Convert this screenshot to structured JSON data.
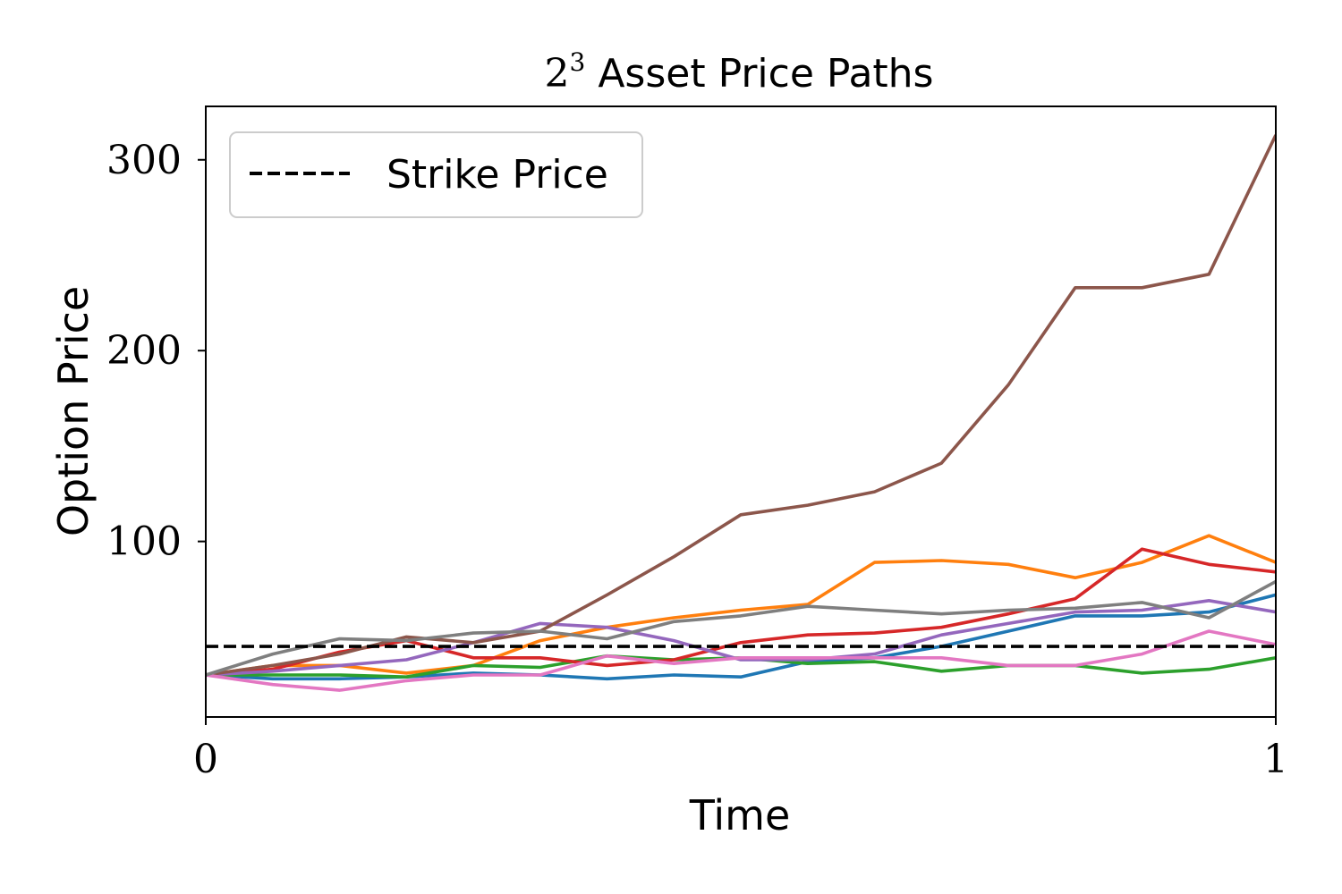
{
  "chart_data": {
    "type": "line",
    "title_base": "2",
    "title_exponent": "3",
    "title_rest": " Asset Price Paths",
    "xlabel": "Time",
    "ylabel": "Option Price",
    "xlim": [
      0,
      1
    ],
    "ylim": [
      8,
      328
    ],
    "xticks": [
      {
        "value": 0,
        "label": "0"
      },
      {
        "value": 1,
        "label": "1"
      }
    ],
    "yticks": [
      {
        "value": 100,
        "label": "100"
      },
      {
        "value": 200,
        "label": "200"
      },
      {
        "value": 300,
        "label": "300"
      }
    ],
    "grid": false,
    "legend_position": "top-left",
    "strike": {
      "name": "Strike Price",
      "value": 45,
      "color": "#000000"
    },
    "x": [
      0,
      0.0625,
      0.125,
      0.1875,
      0.25,
      0.3125,
      0.375,
      0.4375,
      0.5,
      0.5625,
      0.625,
      0.6875,
      0.75,
      0.8125,
      0.875,
      0.9375,
      1
    ],
    "series": [
      {
        "color": "#1f77b4",
        "values": [
          30,
          28,
          28,
          29,
          31,
          30,
          28,
          30,
          29,
          37,
          39,
          45,
          53,
          61,
          61,
          63,
          72
        ]
      },
      {
        "color": "#ff7f0e",
        "values": [
          30,
          35,
          35,
          31,
          35,
          48,
          55,
          60,
          64,
          67,
          89,
          90,
          88,
          81,
          89,
          103,
          89
        ]
      },
      {
        "color": "#2ca02c",
        "values": [
          30,
          30,
          30,
          29,
          35,
          34,
          40,
          38,
          39,
          36,
          37,
          32,
          35,
          35,
          31,
          33,
          39
        ]
      },
      {
        "color": "#d62728",
        "values": [
          30,
          33,
          42,
          48,
          39,
          39,
          35,
          38,
          47,
          51,
          52,
          55,
          62,
          70,
          96,
          88,
          84
        ]
      },
      {
        "color": "#9467bd",
        "values": [
          30,
          32,
          35,
          38,
          47,
          57,
          55,
          48,
          38,
          38,
          41,
          51,
          57,
          63,
          64,
          69,
          63
        ]
      },
      {
        "color": "#8c564b",
        "values": [
          30,
          35,
          41,
          50,
          47,
          53,
          72,
          92,
          114,
          119,
          126,
          141,
          182,
          233,
          233,
          240,
          313
        ]
      },
      {
        "color": "#e377c2",
        "values": [
          30,
          25,
          22,
          27,
          30,
          30,
          40,
          36,
          39,
          39,
          39,
          39,
          35,
          35,
          41,
          53,
          46
        ]
      },
      {
        "color": "#7f7f7f",
        "values": [
          30,
          41,
          49,
          48,
          52,
          53,
          49,
          58,
          61,
          66,
          64,
          62,
          64,
          65,
          68,
          60,
          79
        ]
      }
    ]
  }
}
